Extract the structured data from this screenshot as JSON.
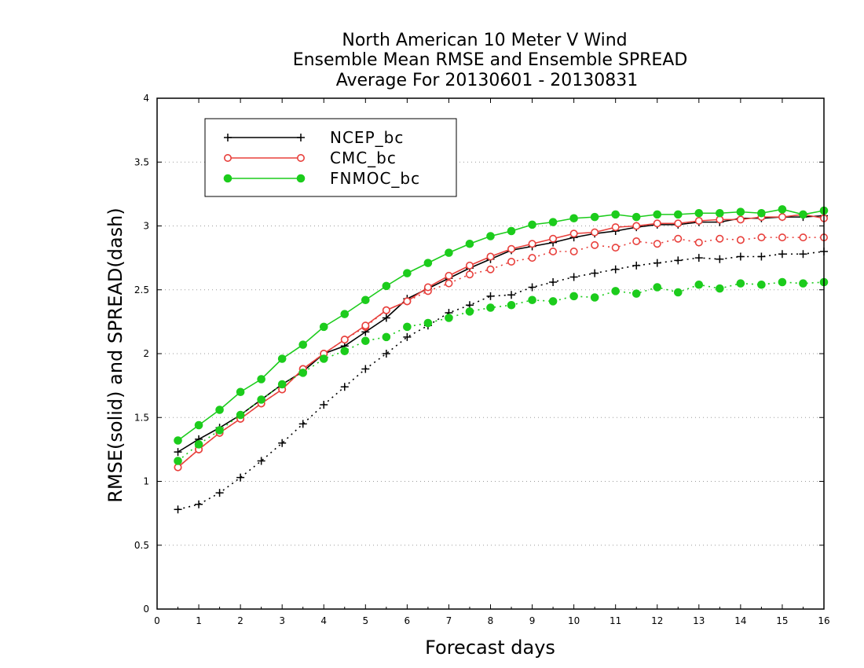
{
  "chart_data": {
    "type": "line",
    "title": [
      "North American 10 Meter V Wind",
      "Ensemble Mean RMSE and Ensemble SPREAD",
      "Average For 20130601 - 20130831"
    ],
    "xlabel": "Forecast days",
    "ylabel": "RMSE(solid) and SPREAD(dash)",
    "xlim": [
      0,
      16
    ],
    "ylim": [
      0,
      4
    ],
    "xticks": [
      0,
      1,
      2,
      3,
      4,
      5,
      6,
      7,
      8,
      9,
      10,
      11,
      12,
      13,
      14,
      15,
      16
    ],
    "yticks": [
      0,
      0.5,
      1,
      1.5,
      2,
      2.5,
      3,
      3.5,
      4
    ],
    "grid": "horizontal dotted",
    "legend_position": "top-left",
    "x": [
      0.5,
      1,
      1.5,
      2,
      2.5,
      3,
      3.5,
      4,
      4.5,
      5,
      5.5,
      6,
      6.5,
      7,
      7.5,
      8,
      8.5,
      9,
      9.5,
      10,
      10.5,
      11,
      11.5,
      12,
      12.5,
      13,
      13.5,
      14,
      14.5,
      15,
      15.5,
      16
    ],
    "series": [
      {
        "name": "NCEP_bc",
        "color": "#000000",
        "marker": "plus",
        "rmse": [
          1.23,
          1.33,
          1.42,
          1.52,
          1.64,
          1.76,
          1.86,
          2.0,
          2.06,
          2.17,
          2.28,
          2.43,
          2.51,
          2.59,
          2.67,
          2.74,
          2.81,
          2.84,
          2.87,
          2.91,
          2.94,
          2.96,
          2.99,
          3.01,
          3.01,
          3.03,
          3.03,
          3.06,
          3.06,
          3.07,
          3.07,
          3.08
        ],
        "spread": [
          0.78,
          0.82,
          0.91,
          1.03,
          1.16,
          1.3,
          1.45,
          1.6,
          1.74,
          1.88,
          2.0,
          2.13,
          2.22,
          2.32,
          2.38,
          2.45,
          2.46,
          2.52,
          2.56,
          2.6,
          2.63,
          2.66,
          2.69,
          2.71,
          2.73,
          2.75,
          2.74,
          2.76,
          2.76,
          2.78,
          2.78,
          2.8
        ]
      },
      {
        "name": "CMC_bc",
        "color": "#e8403c",
        "marker": "open-circle",
        "rmse": [
          1.11,
          1.25,
          1.38,
          1.49,
          1.61,
          1.72,
          1.88,
          2.0,
          2.11,
          2.22,
          2.34,
          2.41,
          2.52,
          2.61,
          2.69,
          2.76,
          2.82,
          2.86,
          2.9,
          2.94,
          2.95,
          2.99,
          3.0,
          3.02,
          3.02,
          3.04,
          3.05,
          3.05,
          3.07,
          3.07,
          3.09,
          3.06
        ],
        "spread": [
          1.11,
          1.25,
          1.38,
          1.49,
          1.61,
          1.72,
          1.88,
          2.0,
          2.11,
          2.21,
          2.34,
          2.41,
          2.49,
          2.55,
          2.62,
          2.66,
          2.72,
          2.75,
          2.8,
          2.8,
          2.85,
          2.83,
          2.88,
          2.86,
          2.9,
          2.87,
          2.9,
          2.89,
          2.91,
          2.91,
          2.91,
          2.91
        ]
      },
      {
        "name": "FNMOC_bc",
        "color": "#1ccc1c",
        "marker": "filled-circle",
        "rmse": [
          1.32,
          1.44,
          1.56,
          1.7,
          1.8,
          1.96,
          2.07,
          2.21,
          2.31,
          2.42,
          2.53,
          2.63,
          2.71,
          2.79,
          2.86,
          2.92,
          2.96,
          3.01,
          3.03,
          3.06,
          3.07,
          3.09,
          3.07,
          3.09,
          3.09,
          3.1,
          3.1,
          3.11,
          3.1,
          3.13,
          3.09,
          3.12
        ],
        "spread": [
          1.16,
          1.29,
          1.4,
          1.52,
          1.64,
          1.76,
          1.85,
          1.96,
          2.02,
          2.1,
          2.13,
          2.21,
          2.24,
          2.28,
          2.33,
          2.36,
          2.38,
          2.42,
          2.41,
          2.45,
          2.44,
          2.49,
          2.47,
          2.52,
          2.48,
          2.54,
          2.51,
          2.55,
          2.54,
          2.56,
          2.55,
          2.56
        ]
      }
    ]
  }
}
